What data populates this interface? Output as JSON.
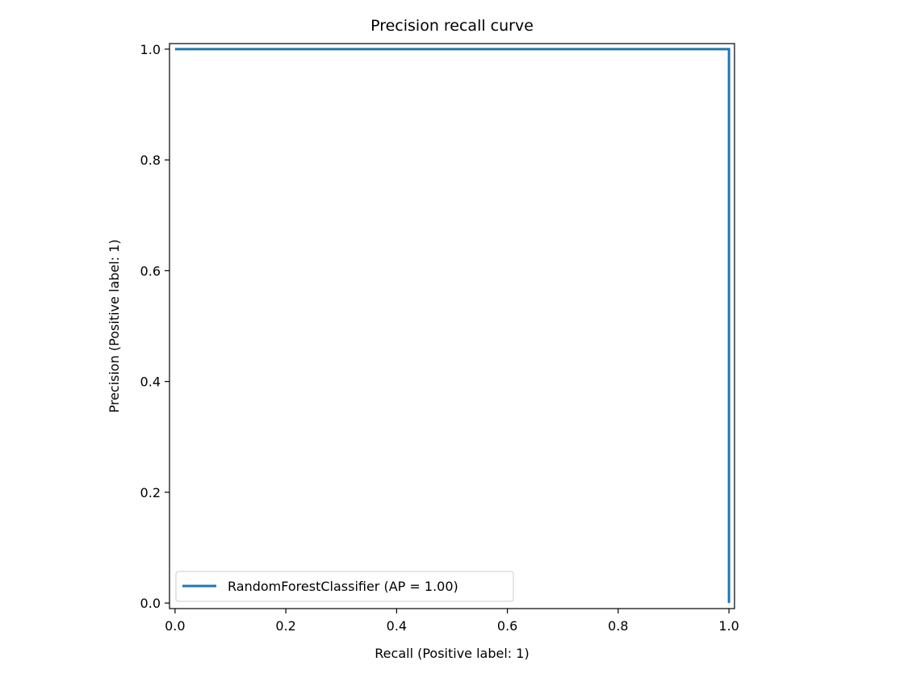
{
  "chart_data": {
    "type": "line",
    "title": "Precision recall curve",
    "xlabel": "Recall (Positive label: 1)",
    "ylabel": "Precision (Positive label: 1)",
    "xlim": [
      -0.01,
      1.01
    ],
    "ylim": [
      -0.01,
      1.01
    ],
    "xticks": [
      0.0,
      0.2,
      0.4,
      0.6,
      0.8,
      1.0
    ],
    "xtick_labels": [
      "0.0",
      "0.2",
      "0.4",
      "0.6",
      "0.8",
      "1.0"
    ],
    "yticks": [
      0.0,
      0.2,
      0.4,
      0.6,
      0.8,
      1.0
    ],
    "ytick_labels": [
      "0.0",
      "0.2",
      "0.4",
      "0.6",
      "0.8",
      "1.0"
    ],
    "grid": false,
    "legend_position": "lower-left",
    "series": [
      {
        "name": "RandomForestClassifier (AP = 1.00)",
        "color": "#1f77b4",
        "x": [
          0.0,
          1.0,
          1.0
        ],
        "y": [
          1.0,
          1.0,
          0.0
        ]
      }
    ]
  }
}
